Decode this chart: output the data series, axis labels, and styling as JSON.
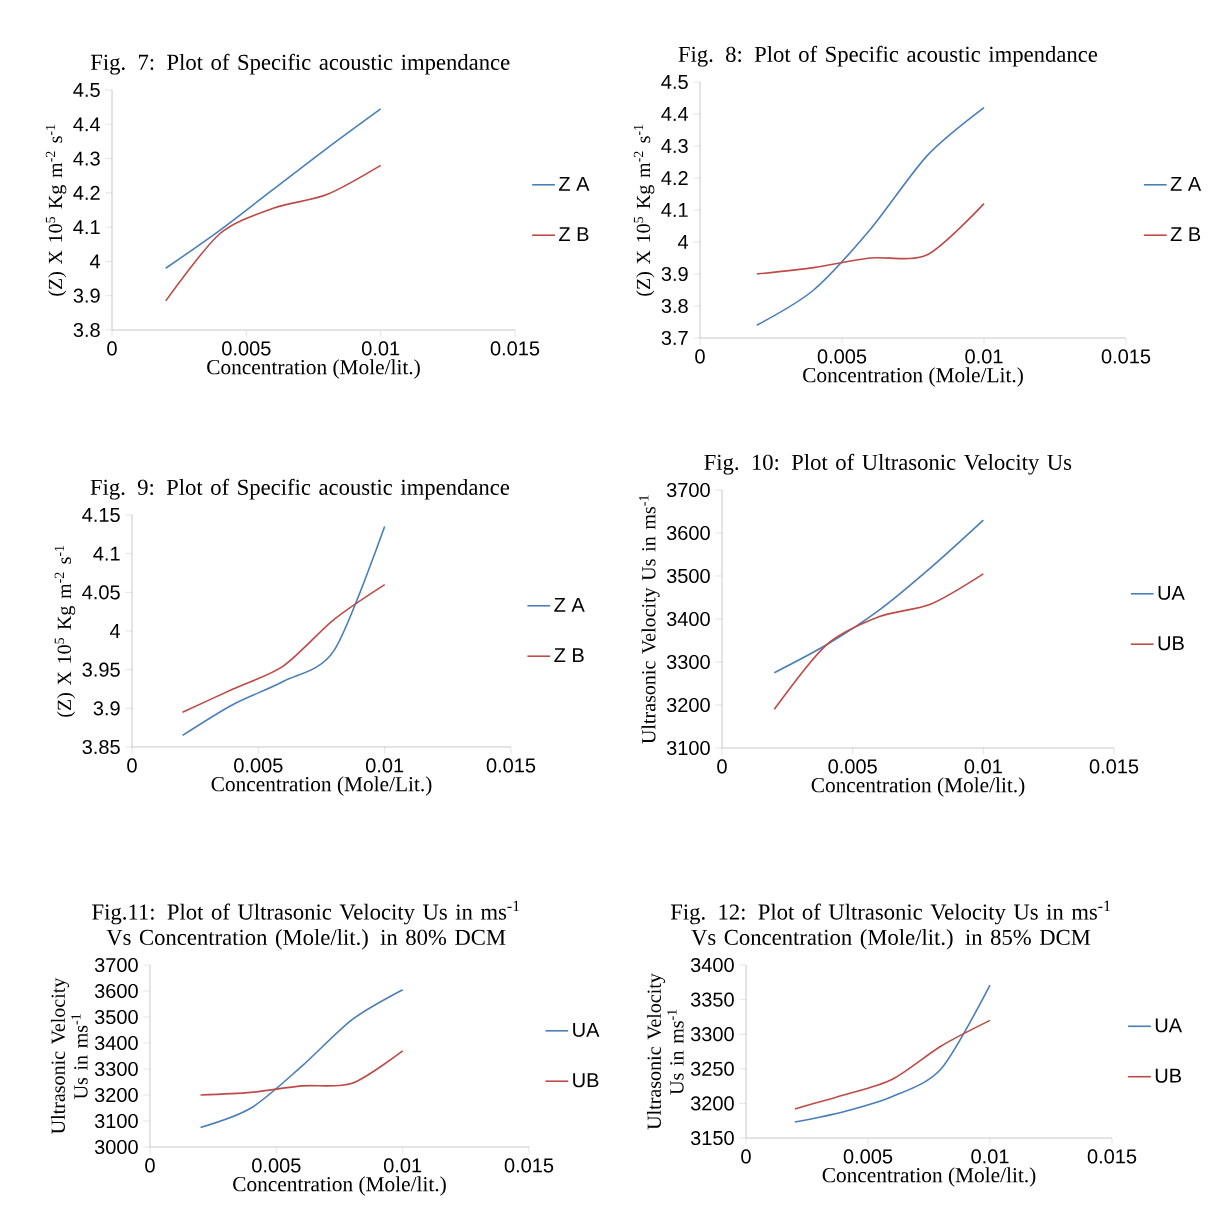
{
  "chart_data": [
    {
      "type": "line",
      "title": "Fig. 7: Plot of Specific acoustic impendance",
      "xlabel": "Concentration (Mole/lit.)",
      "ylabel": "(Z) X 10$^{5}$ Kg m$^{-2}$ s$^{-1}$",
      "x": [
        0.002,
        0.004,
        0.006,
        0.008,
        0.01
      ],
      "xlim": [
        0,
        0.015
      ],
      "xticks": [
        0,
        0.005,
        0.01,
        0.015
      ],
      "ylim": [
        3.8,
        4.5
      ],
      "yticks": [
        3.8,
        3.9,
        4,
        4.1,
        4.2,
        4.3,
        4.4,
        4.5
      ],
      "legend": "right",
      "series": [
        {
          "name": "Z A",
          "color": "#4a7ebb",
          "values": [
            3.98,
            4.09,
            4.21,
            4.33,
            4.445
          ]
        },
        {
          "name": "Z B",
          "color": "#be4b48",
          "values": [
            3.885,
            4.08,
            4.155,
            4.195,
            4.28
          ]
        }
      ]
    },
    {
      "type": "line",
      "title": "Fig. 8: Plot of Specific acoustic impendance",
      "xlabel": "Concentration (Mole/Lit.)",
      "ylabel": "(Z) X 10$^{5}$ Kg m$^{-2}$ s$^{-1}$",
      "x": [
        0.002,
        0.004,
        0.006,
        0.008,
        0.01
      ],
      "xlim": [
        0,
        0.015
      ],
      "xticks": [
        0,
        0.005,
        0.01,
        0.015
      ],
      "ylim": [
        3.7,
        4.5
      ],
      "yticks": [
        3.7,
        3.8,
        3.9,
        4,
        4.1,
        4.2,
        4.3,
        4.4,
        4.5
      ],
      "legend": "right",
      "series": [
        {
          "name": "Z A",
          "color": "#4a7ebb",
          "values": [
            3.74,
            3.85,
            4.04,
            4.27,
            4.42
          ]
        },
        {
          "name": "Z B",
          "color": "#be4b48",
          "values": [
            3.9,
            3.92,
            3.95,
            3.96,
            4.12
          ]
        }
      ]
    },
    {
      "type": "line",
      "title": "Fig. 9: Plot of Specific acoustic impendance",
      "xlabel": "Concentration (Mole/Lit.)",
      "ylabel": "(Z) X 10$^{5}$ Kg m$^{-2}$ s$^{-1}$",
      "x": [
        0.002,
        0.004,
        0.006,
        0.008,
        0.01
      ],
      "xlim": [
        0,
        0.015
      ],
      "xticks": [
        0,
        0.005,
        0.01,
        0.015
      ],
      "ylim": [
        3.85,
        4.15
      ],
      "yticks": [
        3.85,
        3.9,
        3.95,
        4,
        4.05,
        4.1,
        4.15
      ],
      "legend": "right",
      "series": [
        {
          "name": "Z A",
          "color": "#4a7ebb",
          "values": [
            3.865,
            3.905,
            3.935,
            3.975,
            4.135
          ]
        },
        {
          "name": "Z B",
          "color": "#be4b48",
          "values": [
            3.895,
            3.925,
            3.955,
            4.015,
            4.06
          ]
        }
      ]
    },
    {
      "type": "line",
      "title": "Fig. 10: Plot of Ultrasonic Velocity Us",
      "xlabel": "Concentration (Mole/lit.)",
      "ylabel": "Ultrasonic Velocity Us in ms$^{-1}$",
      "x": [
        0.002,
        0.004,
        0.006,
        0.008,
        0.01
      ],
      "xlim": [
        0,
        0.015
      ],
      "xticks": [
        0,
        0.005,
        0.01,
        0.015
      ],
      "ylim": [
        3100,
        3700
      ],
      "yticks": [
        3100,
        3200,
        3300,
        3400,
        3500,
        3600,
        3700
      ],
      "legend": "right",
      "series": [
        {
          "name": "UA",
          "color": "#4a7ebb",
          "values": [
            3275,
            3340,
            3420,
            3520,
            3630
          ]
        },
        {
          "name": "UB",
          "color": "#be4b48",
          "values": [
            3190,
            3340,
            3405,
            3435,
            3505
          ]
        }
      ]
    },
    {
      "type": "line",
      "title": "Fig.11: Plot of Ultrasonic Velocity Us in ms$^{-1}$ Vs Concentration (Mole/lit.) in 80% DCM",
      "xlabel": "Concentration (Mole/lit.)",
      "ylabel": "Ultrasonic Velocity Us in ms$^{-1}$",
      "x": [
        0.002,
        0.004,
        0.006,
        0.008,
        0.01
      ],
      "xlim": [
        0,
        0.015
      ],
      "xticks": [
        0,
        0.005,
        0.01,
        0.015
      ],
      "ylim": [
        3000,
        3700
      ],
      "yticks": [
        3000,
        3100,
        3200,
        3300,
        3400,
        3500,
        3600,
        3700
      ],
      "legend": "right",
      "series": [
        {
          "name": "UA",
          "color": "#4a7ebb",
          "values": [
            3075,
            3150,
            3310,
            3490,
            3605
          ]
        },
        {
          "name": "UB",
          "color": "#be4b48",
          "values": [
            3200,
            3210,
            3235,
            3245,
            3370
          ]
        }
      ]
    },
    {
      "type": "line",
      "title": "Fig. 12: Plot of Ultrasonic Velocity Us in ms$^{-1}$ Vs Concentration (Mole/lit.) in 85% DCM",
      "xlabel": "Concentration (Mole/lit.)",
      "ylabel": "Ultrasonic Velocity Us in ms$^{-1}$",
      "x": [
        0.002,
        0.004,
        0.006,
        0.008,
        0.01
      ],
      "xlim": [
        0,
        0.015
      ],
      "xticks": [
        0,
        0.005,
        0.01,
        0.015
      ],
      "ylim": [
        3150,
        3400
      ],
      "yticks": [
        3150,
        3200,
        3250,
        3300,
        3350,
        3400
      ],
      "legend": "right",
      "series": [
        {
          "name": "UA",
          "color": "#4a7ebb",
          "values": [
            3173,
            3188,
            3210,
            3250,
            3371
          ]
        },
        {
          "name": "UB",
          "color": "#be4b48",
          "values": [
            3192,
            3212,
            3235,
            3283,
            3320
          ]
        }
      ]
    }
  ]
}
